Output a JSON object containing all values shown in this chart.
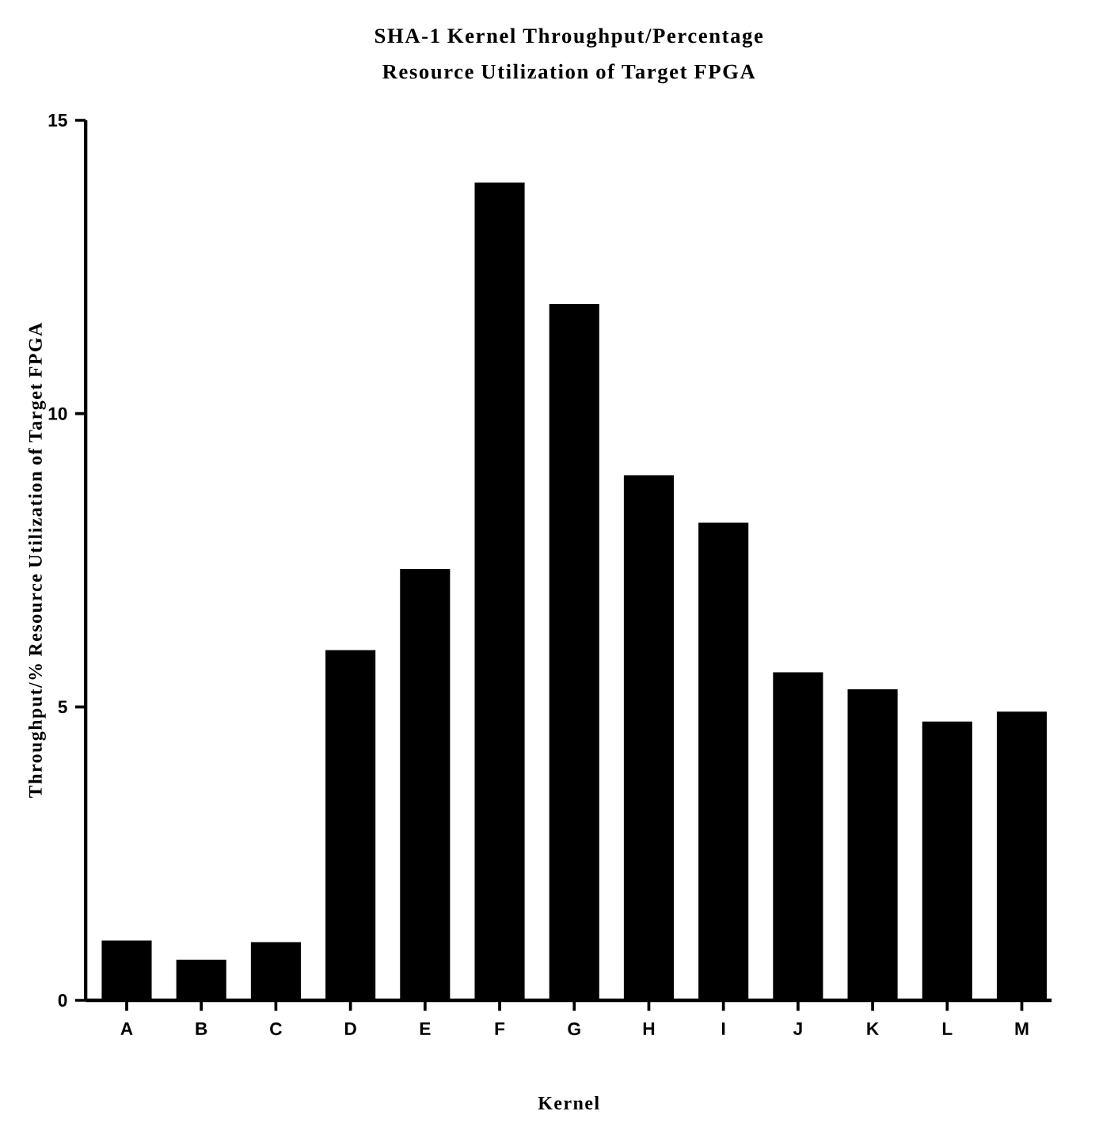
{
  "chart_data": {
    "type": "bar",
    "title": "SHA-1 Kernel Throughput/Percentage Resource Utilization of Target FPGA",
    "xlabel": "Kernel",
    "ylabel": "Throughput/% Resource Utilization of Target FPGA",
    "categories": [
      "A",
      "B",
      "C",
      "D",
      "E",
      "F",
      "G",
      "H",
      "I",
      "J",
      "K",
      "L",
      "M"
    ],
    "values": [
      1.02,
      0.69,
      0.99,
      5.97,
      7.35,
      13.94,
      11.87,
      8.95,
      8.14,
      5.59,
      5.3,
      4.75,
      4.92
    ],
    "color": "#000000",
    "ylim": [
      0,
      15
    ],
    "yticks": [
      0,
      5,
      10,
      15
    ]
  }
}
